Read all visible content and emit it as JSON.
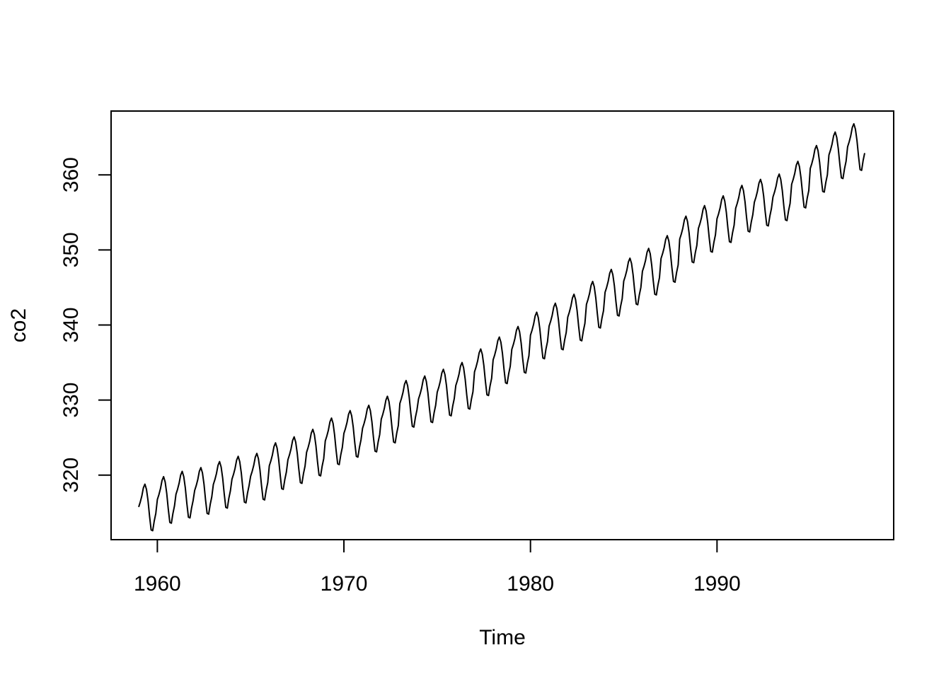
{
  "chart_data": {
    "type": "line",
    "title": "",
    "xlabel": "Time",
    "ylabel": "co2",
    "xlim": [
      1957.52,
      1999.47
    ],
    "ylim": [
      311.4,
      368.5
    ],
    "xticks": [
      1960,
      1970,
      1980,
      1990
    ],
    "yticks": [
      320,
      330,
      340,
      350,
      360
    ],
    "grid": false,
    "line_color": "#000000",
    "series": [
      {
        "start_year": 1959,
        "frequency": 12,
        "annual_means": [
          315.8,
          316.8,
          317.5,
          318.0,
          318.8,
          319.5,
          319.9,
          321.3,
          322.1,
          323.1,
          324.6,
          325.6,
          326.3,
          327.5,
          329.6,
          330.2,
          331.1,
          332.0,
          333.8,
          335.4,
          336.8,
          338.7,
          339.9,
          341.1,
          342.8,
          344.4,
          345.9,
          347.2,
          348.9,
          351.5,
          352.9,
          354.2,
          355.6,
          356.4,
          357.1,
          358.8,
          360.9,
          362.7,
          363.8
        ],
        "seasonal_offsets": [
          -0.05,
          0.6,
          1.4,
          2.5,
          3.0,
          2.3,
          0.8,
          -1.3,
          -3.1,
          -3.2,
          -1.9,
          -0.9
        ]
      }
    ]
  }
}
